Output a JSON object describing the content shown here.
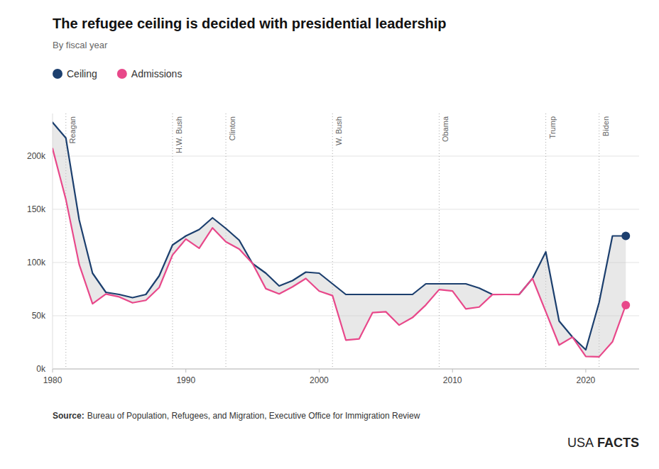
{
  "chart_data": {
    "type": "line",
    "title": "The refugee ceiling is decided with presidential leadership",
    "subtitle": "By fiscal year",
    "source_label": "Source:",
    "source": "Bureau of Population, Refugees, and Migration, Executive Office for Immigration Review",
    "branding": [
      "USA",
      "FACTS"
    ],
    "x": [
      1980,
      1981,
      1982,
      1983,
      1984,
      1985,
      1986,
      1987,
      1988,
      1989,
      1990,
      1991,
      1992,
      1993,
      1994,
      1995,
      1996,
      1997,
      1998,
      1999,
      2000,
      2001,
      2002,
      2003,
      2004,
      2005,
      2006,
      2007,
      2008,
      2009,
      2010,
      2011,
      2012,
      2013,
      2014,
      2015,
      2016,
      2017,
      2018,
      2019,
      2020,
      2021,
      2022,
      2023
    ],
    "series": [
      {
        "name": "Ceiling",
        "color": "#1c3f6e",
        "values": [
          231700,
          217000,
          140000,
          90000,
          72000,
          70000,
          67000,
          70000,
          87500,
          116500,
          125000,
          131000,
          142000,
          132000,
          121000,
          99000,
          90000,
          78000,
          83000,
          91000,
          90000,
          80000,
          70000,
          70000,
          70000,
          70000,
          70000,
          70000,
          80000,
          80000,
          80000,
          80000,
          76000,
          70000,
          70000,
          70000,
          85000,
          110000,
          45000,
          30000,
          18000,
          62500,
          125000,
          125000
        ]
      },
      {
        "name": "Admissions",
        "color": "#e8488a",
        "values": [
          207116,
          159252,
          98096,
          61218,
          70393,
          67704,
          62146,
          64528,
          76483,
          107070,
          122066,
          113389,
          132531,
          119482,
          112682,
          99198,
          75421,
          70488,
          77197,
          85006,
          73147,
          68925,
          27131,
          28303,
          52868,
          53738,
          41223,
          48282,
          60108,
          74602,
          73293,
          56424,
          58179,
          69926,
          69987,
          69933,
          84995,
          53716,
          22491,
          29916,
          11814,
          11411,
          25465,
          60014
        ]
      }
    ],
    "annotations": [
      {
        "text": "Reagan",
        "x": 1981
      },
      {
        "text": "H.W. Bush",
        "x": 1989
      },
      {
        "text": "Clinton",
        "x": 1993
      },
      {
        "text": "W. Bush",
        "x": 2001
      },
      {
        "text": "Obama",
        "x": 2009
      },
      {
        "text": "Trump",
        "x": 2017
      },
      {
        "text": "Biden",
        "x": 2021
      }
    ],
    "xlim": [
      1980,
      2024
    ],
    "xticks": [
      1980,
      1990,
      2000,
      2010,
      2020
    ],
    "ylim": [
      0,
      240000
    ],
    "yticks": [
      {
        "value": 0,
        "label": "0k"
      },
      {
        "value": 50000,
        "label": "50k"
      },
      {
        "value": 100000,
        "label": "100k"
      },
      {
        "value": 150000,
        "label": "150k"
      },
      {
        "value": 200000,
        "label": "200k"
      }
    ],
    "grid": true,
    "legend": "top"
  }
}
